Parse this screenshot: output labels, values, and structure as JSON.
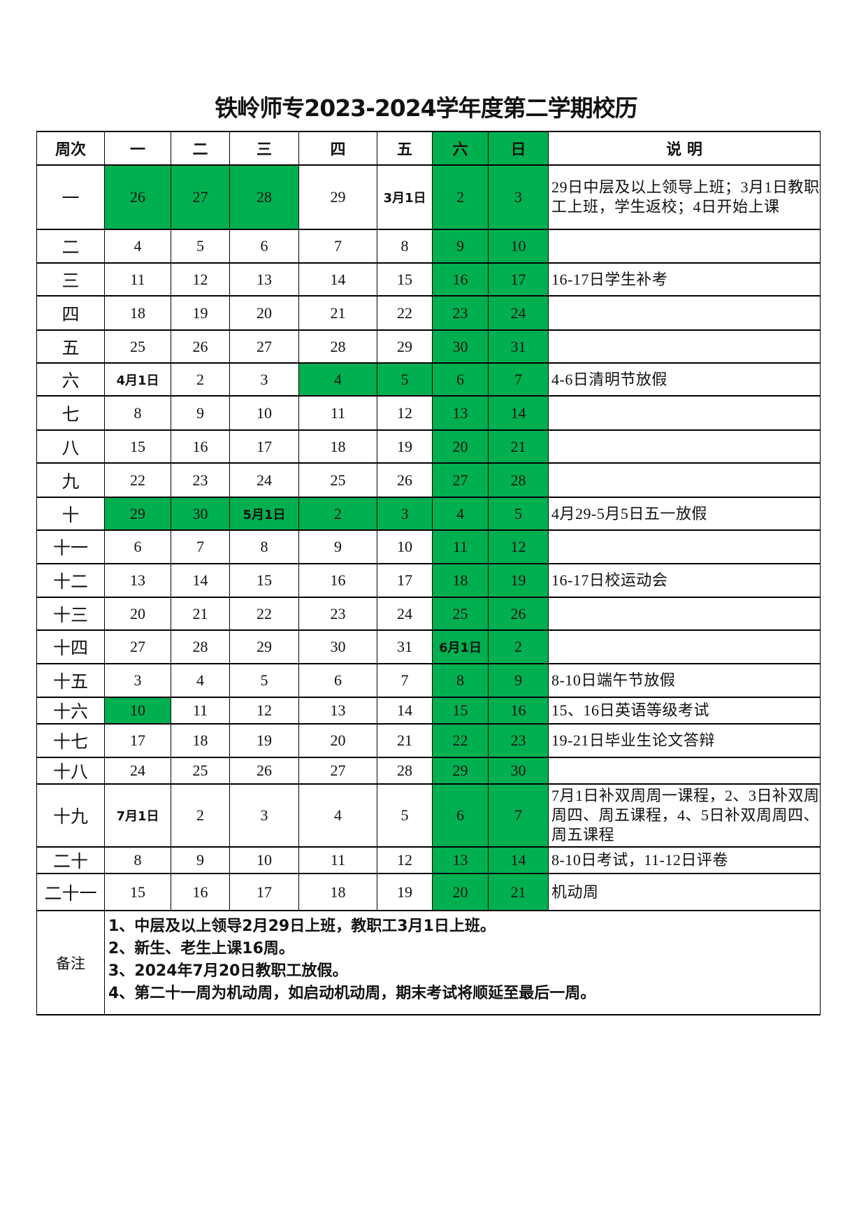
{
  "title": "铁岭师专2023-2024学年度第二学期校历",
  "highlight_color": "#00B050",
  "header": {
    "week": "周次",
    "days": [
      "一",
      "二",
      "三",
      "四",
      "五",
      "六",
      "日"
    ],
    "note": "说    明",
    "highlighted_days": [
      5,
      6
    ]
  },
  "rows": [
    {
      "week": "一",
      "days": [
        "26",
        "27",
        "28",
        "29",
        "3月1日",
        "2",
        "3"
      ],
      "green": [
        0,
        1,
        2,
        5,
        6
      ],
      "bold": [
        4
      ],
      "note": "29日中层及以上领导上班；3月1日教职工上班，学生返校；4日开始上课"
    },
    {
      "week": "二",
      "days": [
        "4",
        "5",
        "6",
        "7",
        "8",
        "9",
        "10"
      ],
      "green": [
        5,
        6
      ],
      "bold": [],
      "note": ""
    },
    {
      "week": "三",
      "days": [
        "11",
        "12",
        "13",
        "14",
        "15",
        "16",
        "17"
      ],
      "green": [
        5,
        6
      ],
      "bold": [],
      "note": "16-17日学生补考"
    },
    {
      "week": "四",
      "days": [
        "18",
        "19",
        "20",
        "21",
        "22",
        "23",
        "24"
      ],
      "green": [
        5,
        6
      ],
      "bold": [],
      "note": ""
    },
    {
      "week": "五",
      "days": [
        "25",
        "26",
        "27",
        "28",
        "29",
        "30",
        "31"
      ],
      "green": [
        5,
        6
      ],
      "bold": [],
      "note": ""
    },
    {
      "week": "六",
      "days": [
        "4月1日",
        "2",
        "3",
        "4",
        "5",
        "6",
        "7"
      ],
      "green": [
        3,
        4,
        5,
        6
      ],
      "bold": [
        0
      ],
      "note": "4-6日清明节放假"
    },
    {
      "week": "七",
      "days": [
        "8",
        "9",
        "10",
        "11",
        "12",
        "13",
        "14"
      ],
      "green": [
        5,
        6
      ],
      "bold": [],
      "note": ""
    },
    {
      "week": "八",
      "days": [
        "15",
        "16",
        "17",
        "18",
        "19",
        "20",
        "21"
      ],
      "green": [
        5,
        6
      ],
      "bold": [],
      "note": ""
    },
    {
      "week": "九",
      "days": [
        "22",
        "23",
        "24",
        "25",
        "26",
        "27",
        "28"
      ],
      "green": [
        5,
        6
      ],
      "bold": [],
      "note": ""
    },
    {
      "week": "十",
      "days": [
        "29",
        "30",
        "5月1日",
        "2",
        "3",
        "4",
        "5"
      ],
      "green": [
        0,
        1,
        2,
        3,
        4,
        5,
        6
      ],
      "bold": [
        2
      ],
      "note": "4月29-5月5日五一放假"
    },
    {
      "week": "十一",
      "days": [
        "6",
        "7",
        "8",
        "9",
        "10",
        "11",
        "12"
      ],
      "green": [
        5,
        6
      ],
      "bold": [],
      "note": ""
    },
    {
      "week": "十二",
      "days": [
        "13",
        "14",
        "15",
        "16",
        "17",
        "18",
        "19"
      ],
      "green": [
        5,
        6
      ],
      "bold": [],
      "note": "16-17日校运动会"
    },
    {
      "week": "十三",
      "days": [
        "20",
        "21",
        "22",
        "23",
        "24",
        "25",
        "26"
      ],
      "green": [
        5,
        6
      ],
      "bold": [],
      "note": ""
    },
    {
      "week": "十四",
      "days": [
        "27",
        "28",
        "29",
        "30",
        "31",
        "6月1日",
        "2"
      ],
      "green": [
        5,
        6
      ],
      "bold": [
        5
      ],
      "note": ""
    },
    {
      "week": "十五",
      "days": [
        "3",
        "4",
        "5",
        "6",
        "7",
        "8",
        "9"
      ],
      "green": [
        5,
        6
      ],
      "bold": [],
      "note": "8-10日端午节放假"
    },
    {
      "week": "十六",
      "days": [
        "10",
        "11",
        "12",
        "13",
        "14",
        "15",
        "16"
      ],
      "green": [
        0,
        5,
        6
      ],
      "bold": [],
      "note": "15、16日英语等级考试"
    },
    {
      "week": "十七",
      "days": [
        "17",
        "18",
        "19",
        "20",
        "21",
        "22",
        "23"
      ],
      "green": [
        5,
        6
      ],
      "bold": [],
      "note": "19-21日毕业生论文答辩"
    },
    {
      "week": "十八",
      "days": [
        "24",
        "25",
        "26",
        "27",
        "28",
        "29",
        "30"
      ],
      "green": [
        5,
        6
      ],
      "bold": [],
      "note": ""
    },
    {
      "week": "十九",
      "days": [
        "7月1日",
        "2",
        "3",
        "4",
        "5",
        "6",
        "7"
      ],
      "green": [
        5,
        6
      ],
      "bold": [
        0
      ],
      "note": "7月1日补双周周一课程，2、3日补双周周四、周五课程，4、5日补双周周四、周五课程"
    },
    {
      "week": "二十",
      "days": [
        "8",
        "9",
        "10",
        "11",
        "12",
        "13",
        "14"
      ],
      "green": [
        5,
        6
      ],
      "bold": [],
      "note": "8-10日考试，11-12日评卷"
    },
    {
      "week": "二十一",
      "days": [
        "15",
        "16",
        "17",
        "18",
        "19",
        "20",
        "21"
      ],
      "green": [
        5,
        6
      ],
      "bold": [],
      "note": "机动周"
    }
  ],
  "remarks": {
    "label": "备注",
    "items": [
      "1、中层及以上领导2月29日上班，教职工3月1日上班。",
      "2、新生、老生上课16周。",
      "3、2024年7月20日教职工放假。",
      "4、第二十一周为机动周，如启动机动周，期末考试将顺延至最后一周。"
    ]
  }
}
